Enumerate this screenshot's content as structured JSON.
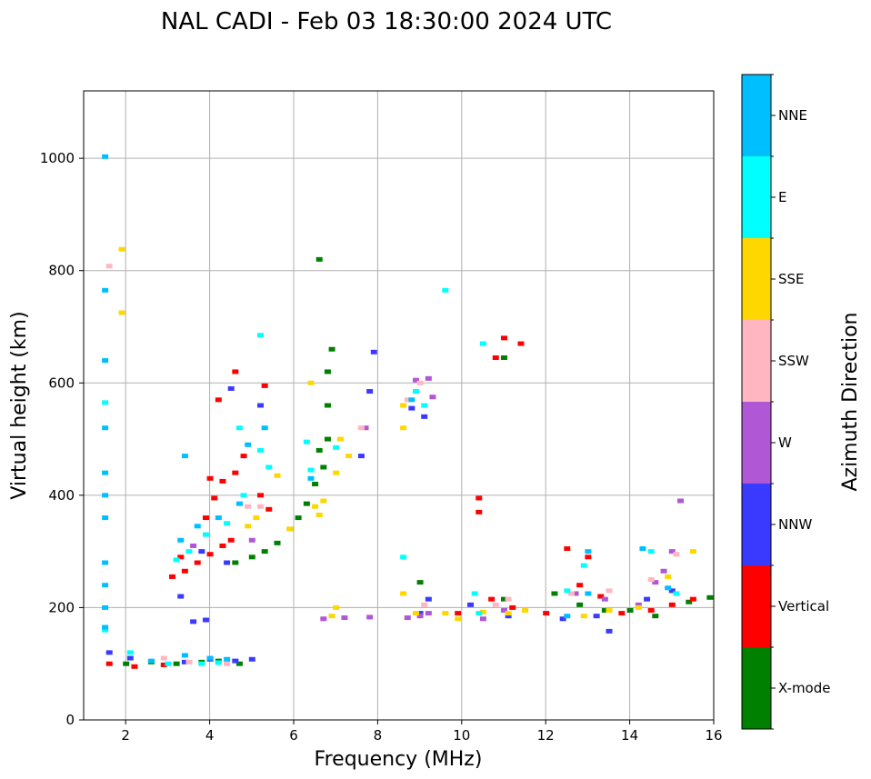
{
  "chart_data": {
    "type": "scatter",
    "title": "NAL CADI - Feb 03 18:30:00 2024 UTC",
    "xlabel": "Frequency (MHz)",
    "ylabel": "Virtual height (km)",
    "xlim": [
      1,
      16
    ],
    "ylim": [
      0,
      1120
    ],
    "xticks": [
      2,
      4,
      6,
      8,
      10,
      12,
      14,
      16
    ],
    "yticks": [
      0,
      200,
      400,
      600,
      800,
      1000
    ],
    "grid": true,
    "colorbar": {
      "label": "Azimuth Direction",
      "categories": [
        {
          "name": "X-mode",
          "color": "#008000"
        },
        {
          "name": "Vertical",
          "color": "#ff0000"
        },
        {
          "name": "NNW",
          "color": "#3a3aff"
        },
        {
          "name": "W",
          "color": "#b057d6"
        },
        {
          "name": "SSW",
          "color": "#ffb6c1"
        },
        {
          "name": "SSE",
          "color": "#ffd700"
        },
        {
          "name": "E",
          "color": "#00ffff"
        },
        {
          "name": "NNE",
          "color": "#00bfff"
        }
      ]
    },
    "series": [
      {
        "name": "X-mode",
        "points": [
          [
            2.0,
            100
          ],
          [
            2.6,
            103
          ],
          [
            3.2,
            100
          ],
          [
            3.8,
            103
          ],
          [
            4.2,
            105
          ],
          [
            4.7,
            100
          ],
          [
            4.6,
            280
          ],
          [
            5.0,
            290
          ],
          [
            5.3,
            300
          ],
          [
            5.6,
            315
          ],
          [
            5.9,
            340
          ],
          [
            6.1,
            360
          ],
          [
            6.3,
            385
          ],
          [
            6.5,
            420
          ],
          [
            6.7,
            450
          ],
          [
            6.6,
            480
          ],
          [
            6.8,
            500
          ],
          [
            6.8,
            560
          ],
          [
            6.8,
            620
          ],
          [
            6.9,
            660
          ],
          [
            6.6,
            820
          ],
          [
            12.2,
            225
          ],
          [
            12.8,
            205
          ],
          [
            13.4,
            195
          ],
          [
            14.0,
            195
          ],
          [
            14.6,
            185
          ],
          [
            15.4,
            210
          ],
          [
            15.9,
            218
          ],
          [
            9.0,
            245
          ],
          [
            11.0,
            215
          ],
          [
            11.0,
            645
          ]
        ]
      },
      {
        "name": "Vertical",
        "points": [
          [
            1.6,
            100
          ],
          [
            2.2,
            95
          ],
          [
            2.9,
            98
          ],
          [
            3.1,
            255
          ],
          [
            3.4,
            265
          ],
          [
            3.7,
            280
          ],
          [
            4.0,
            295
          ],
          [
            4.3,
            310
          ],
          [
            4.5,
            320
          ],
          [
            3.9,
            360
          ],
          [
            4.1,
            395
          ],
          [
            4.3,
            425
          ],
          [
            4.0,
            430
          ],
          [
            4.6,
            440
          ],
          [
            4.8,
            470
          ],
          [
            5.2,
            400
          ],
          [
            5.4,
            375
          ],
          [
            3.3,
            290
          ],
          [
            12.0,
            190
          ],
          [
            12.5,
            305
          ],
          [
            12.8,
            240
          ],
          [
            13.3,
            220
          ],
          [
            13.8,
            190
          ],
          [
            14.5,
            195
          ],
          [
            15.0,
            205
          ],
          [
            15.5,
            215
          ],
          [
            10.7,
            215
          ],
          [
            11.2,
            200
          ],
          [
            10.4,
            370
          ],
          [
            10.4,
            395
          ],
          [
            11.0,
            680
          ],
          [
            11.4,
            670
          ],
          [
            10.8,
            645
          ],
          [
            4.2,
            570
          ],
          [
            4.6,
            620
          ],
          [
            5.3,
            595
          ],
          [
            9.9,
            190
          ],
          [
            13.0,
            290
          ]
        ]
      },
      {
        "name": "NNW",
        "points": [
          [
            1.6,
            120
          ],
          [
            2.1,
            110
          ],
          [
            3.4,
            103
          ],
          [
            4.0,
            108
          ],
          [
            4.6,
            105
          ],
          [
            5.0,
            108
          ],
          [
            3.6,
            175
          ],
          [
            3.9,
            178
          ],
          [
            3.8,
            300
          ],
          [
            4.4,
            280
          ],
          [
            13.5,
            158
          ],
          [
            12.4,
            180
          ],
          [
            13.2,
            185
          ],
          [
            14.4,
            215
          ],
          [
            15.0,
            230
          ],
          [
            8.8,
            555
          ],
          [
            9.1,
            540
          ],
          [
            7.6,
            470
          ],
          [
            7.8,
            585
          ],
          [
            7.9,
            655
          ],
          [
            3.3,
            220
          ],
          [
            10.2,
            205
          ],
          [
            11.1,
            185
          ],
          [
            4.5,
            590
          ],
          [
            5.2,
            560
          ],
          [
            9.0,
            190
          ],
          [
            9.2,
            215
          ]
        ]
      },
      {
        "name": "W",
        "points": [
          [
            6.7,
            180
          ],
          [
            7.2,
            182
          ],
          [
            7.8,
            183
          ],
          [
            8.7,
            182
          ],
          [
            9.0,
            185
          ],
          [
            9.2,
            190
          ],
          [
            11.0,
            195
          ],
          [
            12.7,
            225
          ],
          [
            13.4,
            215
          ],
          [
            14.2,
            205
          ],
          [
            14.6,
            245
          ],
          [
            14.8,
            265
          ],
          [
            15.0,
            300
          ],
          [
            15.2,
            390
          ],
          [
            8.9,
            605
          ],
          [
            9.2,
            608
          ],
          [
            9.3,
            575
          ],
          [
            7.7,
            520
          ],
          [
            5.0,
            320
          ],
          [
            3.6,
            310
          ],
          [
            10.5,
            180
          ]
        ]
      },
      {
        "name": "SSW",
        "points": [
          [
            1.6,
            808
          ],
          [
            2.9,
            110
          ],
          [
            3.5,
            103
          ],
          [
            4.4,
            100
          ],
          [
            12.6,
            225
          ],
          [
            13.5,
            230
          ],
          [
            14.5,
            250
          ],
          [
            15.1,
            295
          ],
          [
            10.8,
            205
          ],
          [
            11.1,
            215
          ],
          [
            9.1,
            205
          ],
          [
            9.0,
            600
          ],
          [
            8.7,
            570
          ],
          [
            7.6,
            520
          ],
          [
            5.2,
            380
          ],
          [
            4.9,
            380
          ]
        ]
      },
      {
        "name": "SSE",
        "points": [
          [
            1.9,
            838
          ],
          [
            1.9,
            725
          ],
          [
            6.5,
            380
          ],
          [
            6.7,
            390
          ],
          [
            6.6,
            365
          ],
          [
            5.9,
            340
          ],
          [
            5.1,
            360
          ],
          [
            4.9,
            345
          ],
          [
            6.9,
            185
          ],
          [
            7.0,
            200
          ],
          [
            8.6,
            560
          ],
          [
            8.6,
            520
          ],
          [
            9.6,
            190
          ],
          [
            9.9,
            180
          ],
          [
            10.5,
            192
          ],
          [
            11.1,
            190
          ],
          [
            11.5,
            195
          ],
          [
            12.9,
            185
          ],
          [
            13.5,
            195
          ],
          [
            14.2,
            200
          ],
          [
            14.9,
            255
          ],
          [
            15.5,
            300
          ],
          [
            7.1,
            500
          ],
          [
            7.0,
            440
          ],
          [
            7.3,
            470
          ],
          [
            8.6,
            225
          ],
          [
            8.9,
            190
          ],
          [
            6.4,
            600
          ],
          [
            5.6,
            435
          ]
        ]
      },
      {
        "name": "E",
        "points": [
          [
            1.5,
            565
          ],
          [
            1.5,
            160
          ],
          [
            2.1,
            120
          ],
          [
            3.0,
            100
          ],
          [
            3.8,
            100
          ],
          [
            4.2,
            102
          ],
          [
            3.2,
            285
          ],
          [
            3.5,
            300
          ],
          [
            3.9,
            330
          ],
          [
            4.4,
            350
          ],
          [
            4.8,
            400
          ],
          [
            5.2,
            480
          ],
          [
            5.4,
            450
          ],
          [
            6.4,
            445
          ],
          [
            6.3,
            495
          ],
          [
            7.0,
            485
          ],
          [
            9.6,
            765
          ],
          [
            10.4,
            190
          ],
          [
            10.3,
            225
          ],
          [
            10.5,
            670
          ],
          [
            8.6,
            290
          ],
          [
            8.9,
            585
          ],
          [
            9.1,
            560
          ],
          [
            12.5,
            230
          ],
          [
            12.9,
            275
          ],
          [
            14.5,
            300
          ],
          [
            15.1,
            225
          ],
          [
            4.7,
            520
          ],
          [
            5.2,
            685
          ]
        ]
      },
      {
        "name": "NNE",
        "points": [
          [
            1.5,
            1003
          ],
          [
            1.5,
            765
          ],
          [
            1.5,
            640
          ],
          [
            1.5,
            520
          ],
          [
            1.5,
            440
          ],
          [
            1.5,
            400
          ],
          [
            1.5,
            360
          ],
          [
            1.5,
            280
          ],
          [
            1.5,
            240
          ],
          [
            1.5,
            200
          ],
          [
            1.5,
            165
          ],
          [
            2.6,
            105
          ],
          [
            3.4,
            115
          ],
          [
            4.0,
            110
          ],
          [
            4.4,
            108
          ],
          [
            3.4,
            470
          ],
          [
            3.3,
            320
          ],
          [
            3.7,
            345
          ],
          [
            4.2,
            360
          ],
          [
            4.7,
            385
          ],
          [
            4.9,
            490
          ],
          [
            5.3,
            520
          ],
          [
            6.4,
            430
          ],
          [
            8.8,
            570
          ],
          [
            13.0,
            300
          ],
          [
            14.3,
            305
          ],
          [
            14.9,
            235
          ],
          [
            12.5,
            185
          ],
          [
            13.0,
            225
          ]
        ]
      }
    ]
  }
}
